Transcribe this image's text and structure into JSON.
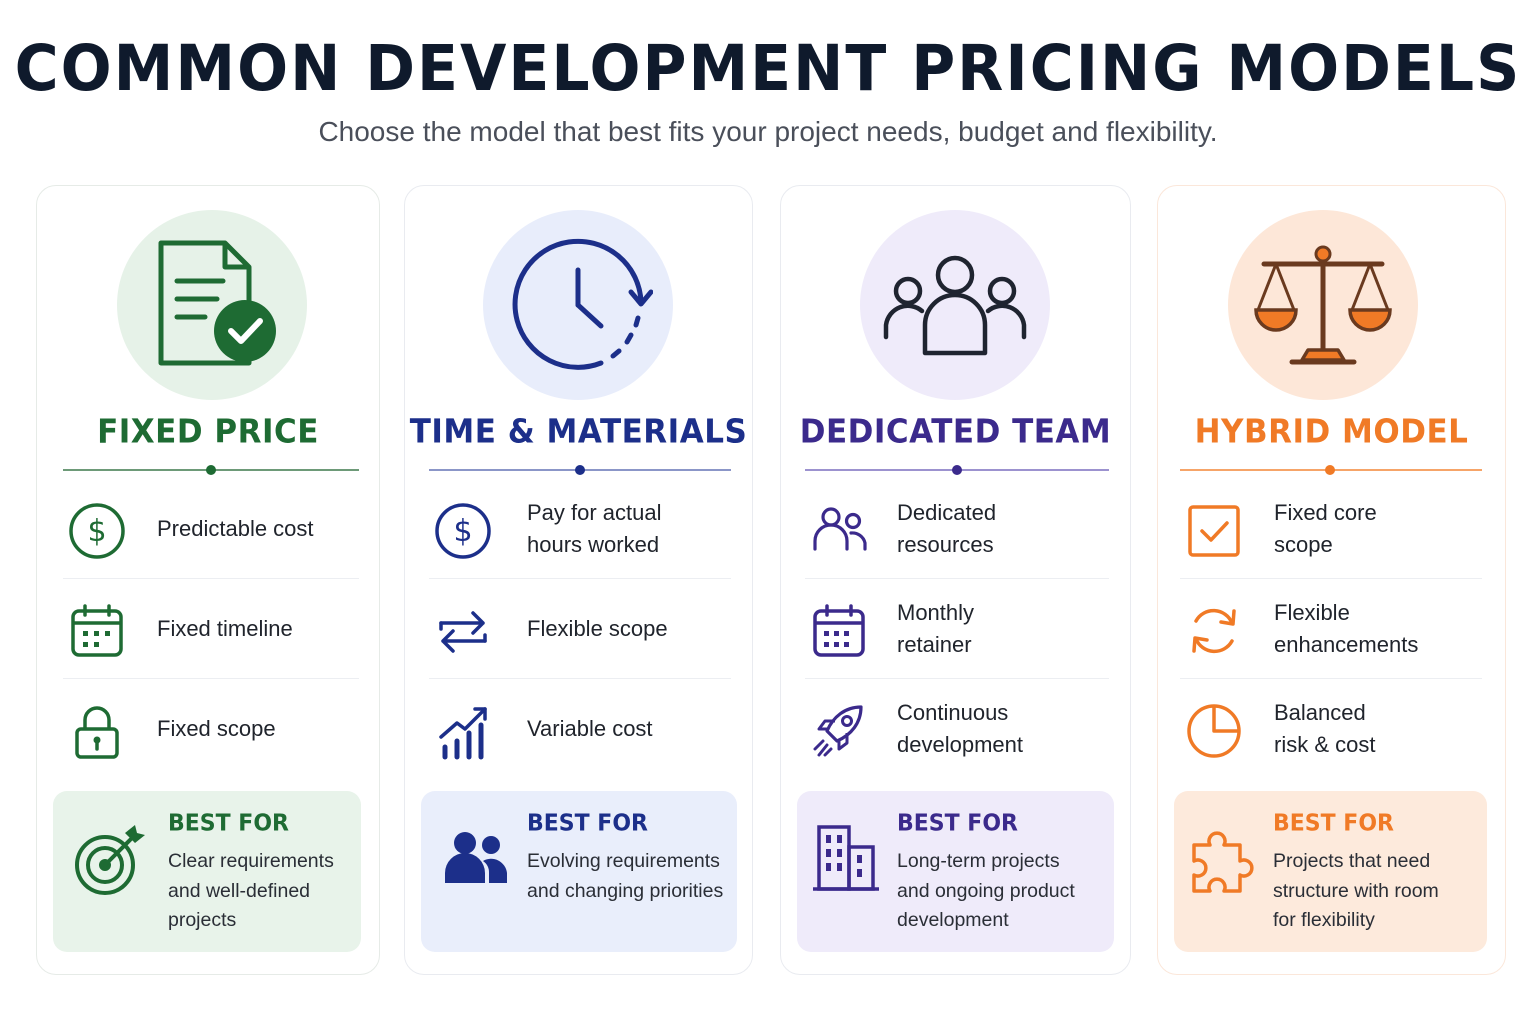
{
  "header": {
    "title": "COMMON DEVELOPMENT PRICING MODELS",
    "subtitle": "Choose the model that best fits your project needs, budget and flexibility."
  },
  "colors": {
    "fixed_price": "#1e6b33",
    "time_materials": "#1c2f8a",
    "dedicated_team": "#3b2a8c",
    "hybrid_model": "#f07a26"
  },
  "cards": [
    {
      "title": "FIXED PRICE",
      "hero_icon": "document-check-icon",
      "features": [
        {
          "icon": "dollar-circle-icon",
          "text": "Predictable cost"
        },
        {
          "icon": "calendar-icon",
          "text": "Fixed timeline"
        },
        {
          "icon": "lock-icon",
          "text": "Fixed scope"
        }
      ],
      "best_for": {
        "icon": "target-icon",
        "heading": "BEST FOR",
        "text": "Clear requirements\nand well-defined\nprojects"
      }
    },
    {
      "title": "TIME & MATERIALS",
      "hero_icon": "clock-cycle-icon",
      "features": [
        {
          "icon": "dollar-circle-icon",
          "text": "Pay for actual\nhours worked"
        },
        {
          "icon": "swap-arrows-icon",
          "text": "Flexible scope"
        },
        {
          "icon": "growth-chart-icon",
          "text": "Variable cost"
        }
      ],
      "best_for": {
        "icon": "users-icon",
        "heading": "BEST FOR",
        "text": "Evolving requirements\nand changing priorities"
      }
    },
    {
      "title": "DEDICATED TEAM",
      "hero_icon": "team-icon",
      "features": [
        {
          "icon": "people-icon",
          "text": "Dedicated\nresources"
        },
        {
          "icon": "calendar-icon",
          "text": "Monthly\nretainer"
        },
        {
          "icon": "rocket-icon",
          "text": "Continuous\ndevelopment"
        }
      ],
      "best_for": {
        "icon": "building-icon",
        "heading": "BEST FOR",
        "text": "Long-term projects\nand ongoing product\ndevelopment"
      }
    },
    {
      "title": "HYBRID MODEL",
      "hero_icon": "balance-scale-icon",
      "features": [
        {
          "icon": "checkbox-icon",
          "text": "Fixed core\nscope"
        },
        {
          "icon": "refresh-icon",
          "text": "Flexible\nenhancements"
        },
        {
          "icon": "pie-chart-icon",
          "text": "Balanced\nrisk & cost"
        }
      ],
      "best_for": {
        "icon": "puzzle-icon",
        "heading": "BEST FOR",
        "text": "Projects that need\nstructure with room\nfor flexibility"
      }
    }
  ]
}
